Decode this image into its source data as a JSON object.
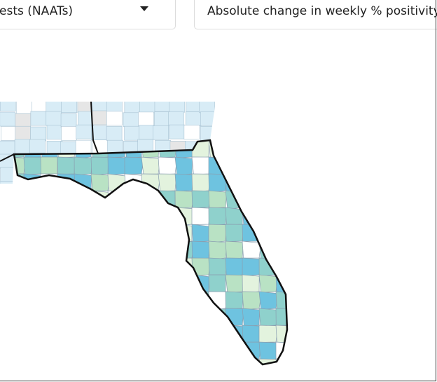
{
  "controls": {
    "test_type": "ests (NAATs)",
    "metric": "Absolute change in weekly % positivity"
  }
}
